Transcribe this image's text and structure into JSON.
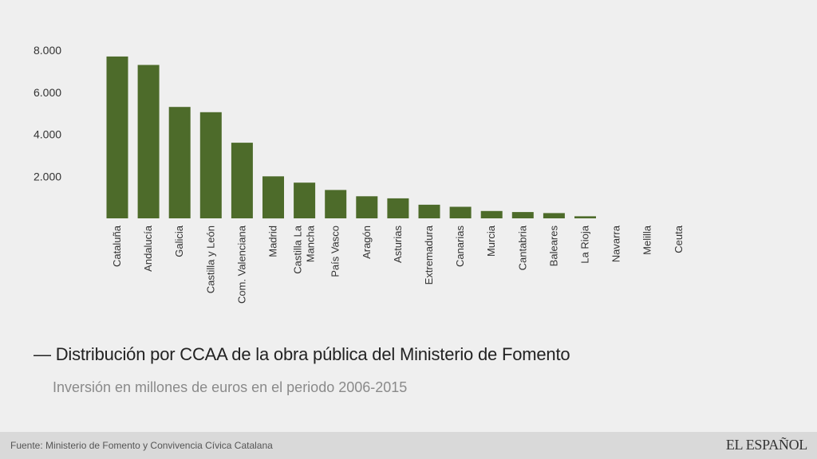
{
  "chart_data": {
    "type": "bar",
    "title": "— Distribución por CCAA de la obra pública del Ministerio de Fomento",
    "subtitle": "Inversión en millones de euros en el periodo 2006-2015",
    "categories": [
      [
        "Cataluña"
      ],
      [
        "Andalucía"
      ],
      [
        "Galicia"
      ],
      [
        "Castilla y León"
      ],
      [
        "Com. Valenciana"
      ],
      [
        "Madrid"
      ],
      [
        "Castilla La",
        "Mancha"
      ],
      [
        "País Vasco"
      ],
      [
        "Aragón"
      ],
      [
        "Asturias"
      ],
      [
        "Extremadura"
      ],
      [
        "Canarias"
      ],
      [
        "Murcia"
      ],
      [
        "Cantabria"
      ],
      [
        "Baleares"
      ],
      [
        "La Rioja"
      ],
      [
        "Navarra"
      ],
      [
        "Melilla"
      ],
      [
        "Ceuta"
      ]
    ],
    "values": [
      7700,
      7300,
      5300,
      5050,
      3600,
      2000,
      1700,
      1350,
      1050,
      950,
      650,
      550,
      350,
      300,
      250,
      100,
      0,
      0,
      0
    ],
    "yticks": [
      {
        "value": 2000,
        "label": "2.000"
      },
      {
        "value": 4000,
        "label": "4.000"
      },
      {
        "value": 6000,
        "label": "6.000"
      },
      {
        "value": 8000,
        "label": "8.000"
      }
    ],
    "ylim": [
      0,
      8000
    ],
    "grid": false,
    "bar_color": "#4d6b2a",
    "source": "Fuente: Ministerio de Fomento y Convivencia Cívica Catalana",
    "logo": "EL ESPAÑOL"
  }
}
